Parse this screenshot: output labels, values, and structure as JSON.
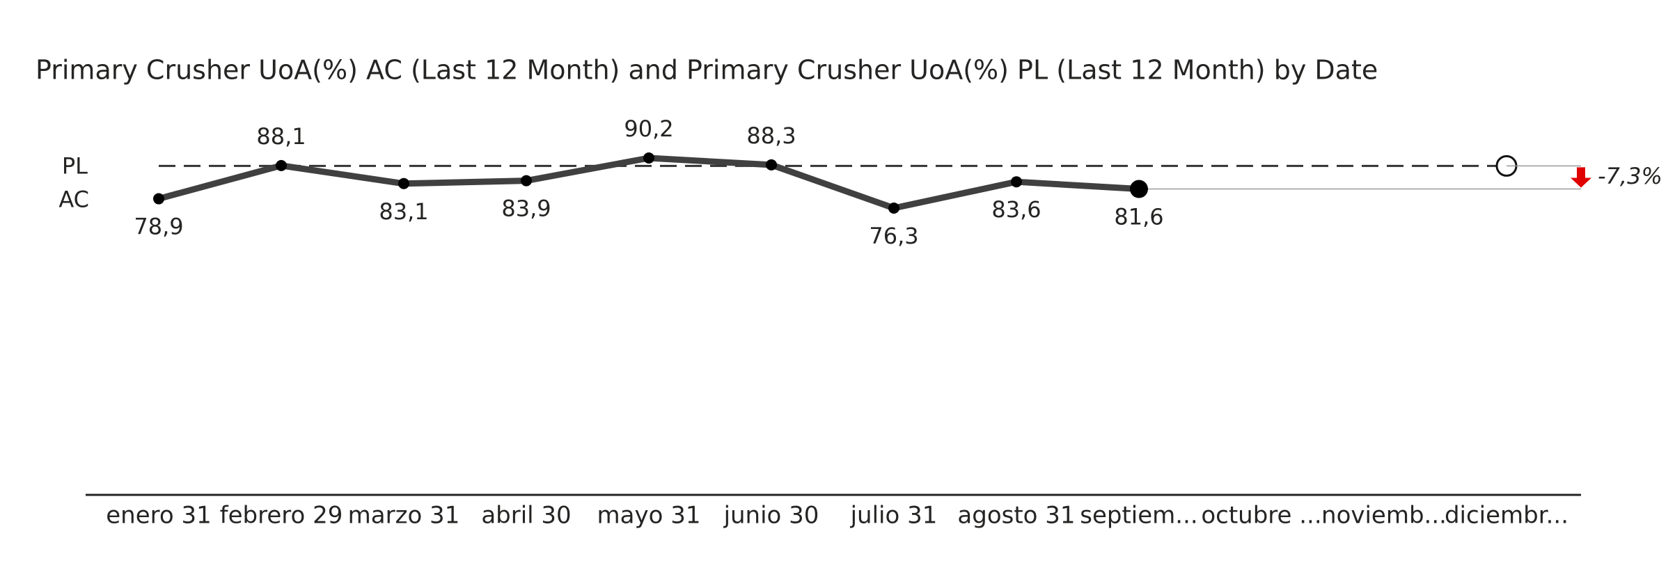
{
  "chart_data": {
    "type": "line",
    "title": "Primary Crusher UoA(%) AC (Last 12 Month) and Primary Crusher UoA(%) PL (Last 12 Month) by Date",
    "categories": [
      "enero 31",
      "febrero 29",
      "marzo 31",
      "abril 30",
      "mayo 31",
      "junio 30",
      "julio 31",
      "agosto 31",
      "septiem...",
      "octubre ...",
      "noviemb...",
      "diciembr..."
    ],
    "series": [
      {
        "name": "PL",
        "color": "#333333",
        "values": [
          88,
          88,
          88,
          88,
          88,
          88,
          88,
          88,
          88,
          88,
          88,
          88
        ]
      },
      {
        "name": "AC",
        "color": "#404040",
        "values": [
          78.9,
          88.1,
          83.1,
          83.9,
          90.2,
          88.3,
          76.3,
          83.6,
          81.6,
          null,
          null,
          null
        ],
        "value_labels": [
          "78,9",
          "88,1",
          "83,1",
          "83,9",
          "90,2",
          "88,3",
          "76,3",
          "83,6",
          "81,6",
          null,
          null,
          null
        ]
      }
    ],
    "variance": {
      "value": -7.3,
      "label": "-7,3%"
    },
    "variance_color": "#e00000"
  }
}
